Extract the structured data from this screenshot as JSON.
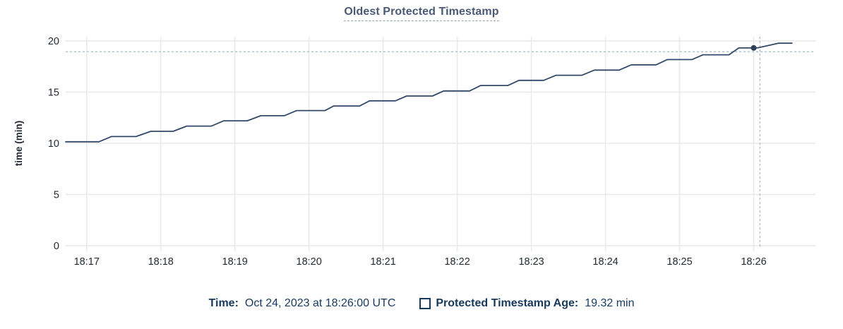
{
  "title": "Oldest Protected Timestamp",
  "colors": {
    "title_text": "#4a5a76",
    "underline": "#93a3b8",
    "legend_text": "#17395e",
    "tick_text": "#242a33",
    "line": "#33496a",
    "dot": "#2c4257",
    "grid": "#e9e9e9",
    "crosshair": "#a3bac9",
    "background": "#ffffff"
  },
  "legend": {
    "time_label": "Time:",
    "time_value": "Oct 24, 2023 at 18:26:00 UTC",
    "series_label": "Protected Timestamp Age:",
    "series_value": "19.32 min"
  },
  "chart_data": {
    "type": "line",
    "title": "Oldest Protected Timestamp",
    "xlabel": "",
    "ylabel": "time (min)",
    "ylim": [
      0,
      20
    ],
    "yticks": [
      0,
      5,
      10,
      15,
      20
    ],
    "xticks": [
      "18:17",
      "18:18",
      "18:19",
      "18:20",
      "18:21",
      "18:22",
      "18:23",
      "18:24",
      "18:25",
      "18:26"
    ],
    "x_domain_start": "18:16:43",
    "x_domain_end": "18:26:50",
    "grid": true,
    "legend_position": "bottom",
    "series": [
      {
        "name": "Protected Timestamp Age",
        "unit": "min",
        "points": [
          [
            "18:16:43",
            10.15
          ],
          [
            "18:17:10",
            10.15
          ],
          [
            "18:17:20",
            10.66
          ],
          [
            "18:17:40",
            10.66
          ],
          [
            "18:17:52",
            11.17
          ],
          [
            "18:18:10",
            11.17
          ],
          [
            "18:18:21",
            11.68
          ],
          [
            "18:18:41",
            11.68
          ],
          [
            "18:18:51",
            12.2
          ],
          [
            "18:19:10",
            12.2
          ],
          [
            "18:19:21",
            12.7
          ],
          [
            "18:19:40",
            12.7
          ],
          [
            "18:19:50",
            13.2
          ],
          [
            "18:20:13",
            13.2
          ],
          [
            "18:20:20",
            13.65
          ],
          [
            "18:20:41",
            13.65
          ],
          [
            "18:20:49",
            14.15
          ],
          [
            "18:21:10",
            14.15
          ],
          [
            "18:21:19",
            14.62
          ],
          [
            "18:21:40",
            14.62
          ],
          [
            "18:21:49",
            15.12
          ],
          [
            "18:22:10",
            15.12
          ],
          [
            "18:22:19",
            15.65
          ],
          [
            "18:22:41",
            15.65
          ],
          [
            "18:22:50",
            16.15
          ],
          [
            "18:23:10",
            16.15
          ],
          [
            "18:23:20",
            16.65
          ],
          [
            "18:23:41",
            16.65
          ],
          [
            "18:23:51",
            17.15
          ],
          [
            "18:24:11",
            17.15
          ],
          [
            "18:24:21",
            17.67
          ],
          [
            "18:24:41",
            17.67
          ],
          [
            "18:24:50",
            18.18
          ],
          [
            "18:25:10",
            18.18
          ],
          [
            "18:25:19",
            18.65
          ],
          [
            "18:25:40",
            18.65
          ],
          [
            "18:25:48",
            19.32
          ],
          [
            "18:26:03",
            19.32
          ],
          [
            "18:26:20",
            19.78
          ],
          [
            "18:26:31",
            19.78
          ]
        ]
      }
    ],
    "hover": {
      "time": "18:26:00",
      "value": 19.32,
      "crosshair_time": "18:26:05",
      "crosshair_value": 18.95
    }
  }
}
